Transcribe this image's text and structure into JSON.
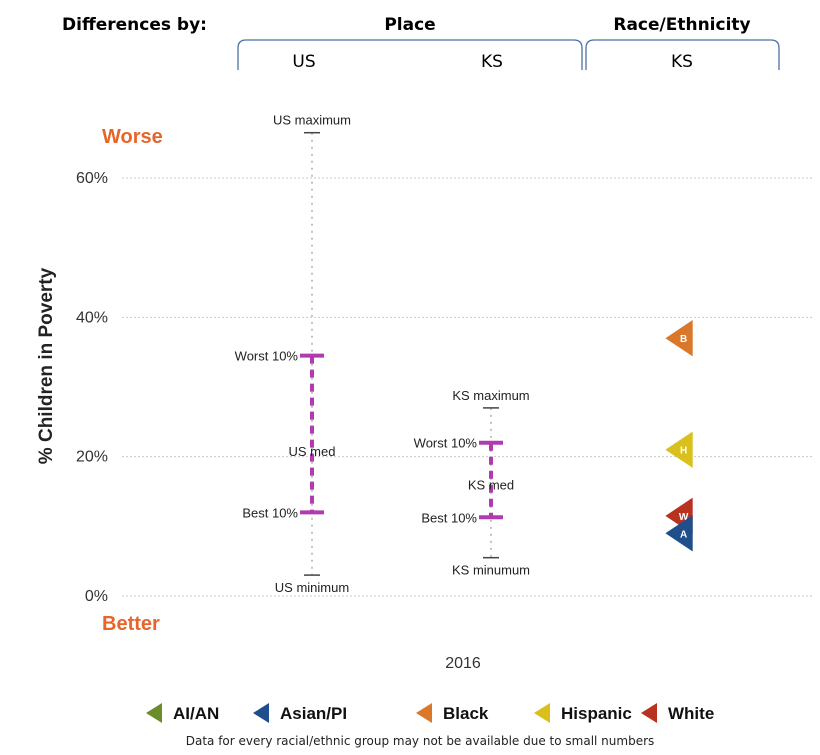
{
  "header": {
    "differences_by": "Differences by:",
    "place": "Place",
    "race_ethnicity": "Race/Ethnicity",
    "us": "US",
    "ks_place": "KS",
    "ks_race": "KS"
  },
  "chart_data": {
    "type": "scatter",
    "ylabel": "% Children in Poverty",
    "worse_label": "Worse",
    "better_label": "Better",
    "ylim": [
      0,
      67
    ],
    "yticks": [
      {
        "value": 0,
        "label": "0%"
      },
      {
        "value": 20,
        "label": "20%"
      },
      {
        "value": 40,
        "label": "40%"
      },
      {
        "value": 60,
        "label": "60%"
      }
    ],
    "grid": true,
    "x_category": "2016",
    "distributions": [
      {
        "name": "US",
        "max": 66.5,
        "worst10": 34.5,
        "median": 20.8,
        "best10": 12.0,
        "min": 3.0,
        "labels": {
          "max": "US maximum",
          "worst10": "Worst 10%",
          "median": "US med",
          "best10": "Best 10%",
          "min": "US minimum"
        },
        "color": "#b03bb0"
      },
      {
        "name": "KS",
        "max": 27.0,
        "worst10": 22.0,
        "median": 16.0,
        "best10": 11.3,
        "min": 5.5,
        "labels": {
          "max": "KS maximum",
          "worst10": "Worst 10%",
          "median": "KS med",
          "best10": "Best 10%",
          "min": "KS minumum"
        },
        "color": "#b03bb0"
      }
    ],
    "race_points": [
      {
        "group": "Black",
        "letter": "B",
        "value": 37.0,
        "color": "#d9772a"
      },
      {
        "group": "Hispanic",
        "letter": "H",
        "value": 21.0,
        "color": "#d9c01a"
      },
      {
        "group": "White",
        "letter": "W",
        "value": 11.5,
        "color": "#b8321f"
      },
      {
        "group": "Asian/PI",
        "letter": "A",
        "value": 9.0,
        "color": "#1f4e8c"
      }
    ],
    "legend": {
      "placement": "bottom",
      "items": [
        {
          "label": "AI/AN",
          "letter": "AI",
          "color": "#6b8c2a"
        },
        {
          "label": "Asian/PI",
          "letter": "A",
          "color": "#1f4e8c"
        },
        {
          "label": "Black",
          "letter": "B",
          "color": "#d9772a"
        },
        {
          "label": "Hispanic",
          "letter": "H",
          "color": "#d9c01a"
        },
        {
          "label": "White",
          "letter": "W",
          "color": "#b8321f"
        }
      ]
    },
    "note": "Data for every racial/ethnic group may not be available due to small numbers"
  }
}
